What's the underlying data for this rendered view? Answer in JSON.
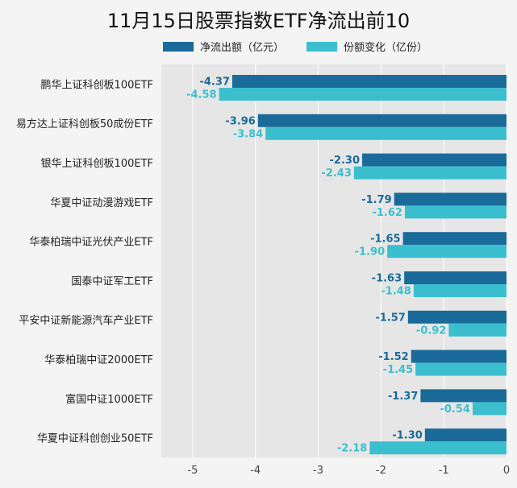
{
  "chart_data": {
    "type": "bar",
    "orientation": "horizontal",
    "title": "11月15日股票指数ETF净流出前10",
    "categories": [
      "鹏华上证科创板100ETF",
      "易方达上证科创板50成份ETF",
      "银华上证科创板100ETF",
      "华夏中证动漫游戏ETF",
      "华泰柏瑞中证光伏产业ETF",
      "国泰中证军工ETF",
      "平安中证新能源汽车产业ETF",
      "华泰柏瑞中证2000ETF",
      "富国中证1000ETF",
      "华夏中证科创创业50ETF"
    ],
    "series": [
      {
        "name": "净流出额（亿元）",
        "color": "#1a6b9a",
        "values": [
          -4.37,
          -3.96,
          -2.3,
          -1.79,
          -1.65,
          -1.63,
          -1.57,
          -1.52,
          -1.37,
          -1.3
        ],
        "labels": [
          "-4.37",
          "-3.96",
          "-2.30",
          "-1.79",
          "-1.65",
          "-1.63",
          "-1.57",
          "-1.52",
          "-1.37",
          "-1.30"
        ]
      },
      {
        "name": "份额变化（亿份）",
        "color": "#3bbfcf",
        "values": [
          -4.58,
          -3.84,
          -2.43,
          -1.62,
          -1.9,
          -1.48,
          -0.92,
          -1.45,
          -0.54,
          -2.18
        ],
        "labels": [
          "-4.58",
          "-3.84",
          "-2.43",
          "-1.62",
          "-1.90",
          "-1.48",
          "-0.92",
          "-1.45",
          "-0.54",
          "-2.18"
        ]
      }
    ],
    "xlim": [
      -5.5,
      0
    ],
    "xticks": [
      -5,
      -4,
      -3,
      -2,
      -1,
      0
    ],
    "xtick_labels": [
      "-5",
      "-4",
      "-3",
      "-2",
      "-1",
      "0"
    ],
    "grid": true,
    "legend_position": "top",
    "plot_background": "#e6e6e6"
  }
}
